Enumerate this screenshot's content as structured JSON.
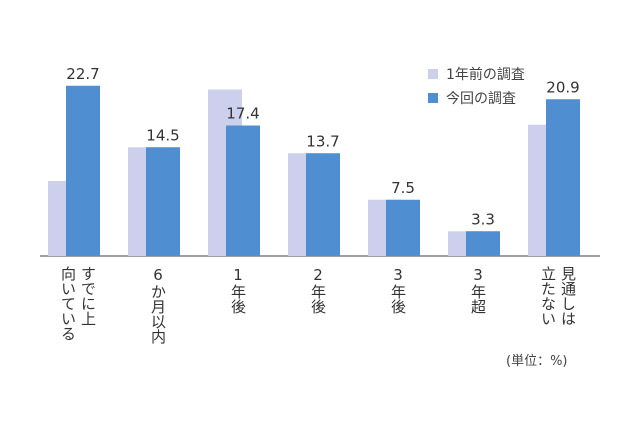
{
  "chart_data": {
    "type": "bar",
    "categories": [
      "すでに上向いている",
      "6か月以内",
      "1年後",
      "2年後",
      "3年後",
      "3年超",
      "見通しは立たない"
    ],
    "category_columns": [
      [
        "すでに上",
        "向いている"
      ],
      [
        "6か月以内"
      ],
      [
        "1年後"
      ],
      [
        "2年後"
      ],
      [
        "3年後"
      ],
      [
        "3年超"
      ],
      [
        "見通しは",
        "立たない"
      ]
    ],
    "series": [
      {
        "name": "1年前の調査",
        "values": [
          10.0,
          14.5,
          22.2,
          13.7,
          7.5,
          3.3,
          17.5
        ],
        "labels": [
          null,
          null,
          null,
          null,
          null,
          null,
          null
        ]
      },
      {
        "name": "今回の調査",
        "values": [
          22.7,
          14.5,
          17.4,
          13.7,
          7.5,
          3.3,
          20.9
        ],
        "labels": [
          "22.7",
          "14.5",
          "17.4",
          "13.7",
          "7.5",
          "3.3",
          "20.9"
        ]
      }
    ],
    "ylim": [
      0,
      25
    ],
    "unit_note": "(単位：%)",
    "colors": {
      "prev": "#cdd0ec",
      "curr": "#4f8fd1"
    }
  }
}
